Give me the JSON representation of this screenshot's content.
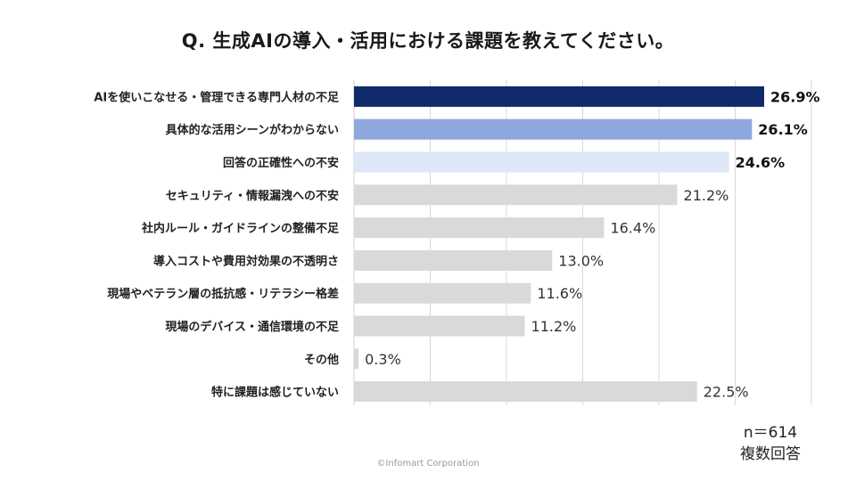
{
  "title": "Q. 生成AIの導入・活用における課題を教えてください。",
  "note": {
    "n": "n＝614",
    "multiple": "複数回答"
  },
  "copyright": "©Infomart Corporation",
  "colors": {
    "top1": "#102a6b",
    "top2": "#8ea8dd",
    "top3": "#dde7f7",
    "other": "#d9d9d9",
    "grid": "#d9d9d9"
  },
  "chart_data": {
    "type": "bar",
    "orientation": "horizontal",
    "categories": [
      "AIを使いこなせる・管理できる専門人材の不足",
      "具体的な活用シーンがわからない",
      "回答の正確性への不安",
      "セキュリティ・情報漏洩への不安",
      "社内ルール・ガイドラインの整備不足",
      "導入コストや費用対効果の不透明さ",
      "現場やベテラン層の抵抗感・リテラシー格差",
      "現場のデバイス・通信環境の不足",
      "その他",
      "特に課題は感じていない"
    ],
    "values": [
      26.9,
      26.1,
      24.6,
      21.2,
      16.4,
      13.0,
      11.6,
      11.2,
      0.3,
      22.5
    ],
    "value_labels": [
      "26.9%",
      "26.1%",
      "24.6%",
      "21.2%",
      "16.4%",
      "13.0%",
      "11.6%",
      "11.2%",
      "0.3%",
      "22.5%"
    ],
    "highlight_top": 3,
    "xlim": [
      0,
      30
    ],
    "grid": true,
    "legend": "none"
  }
}
